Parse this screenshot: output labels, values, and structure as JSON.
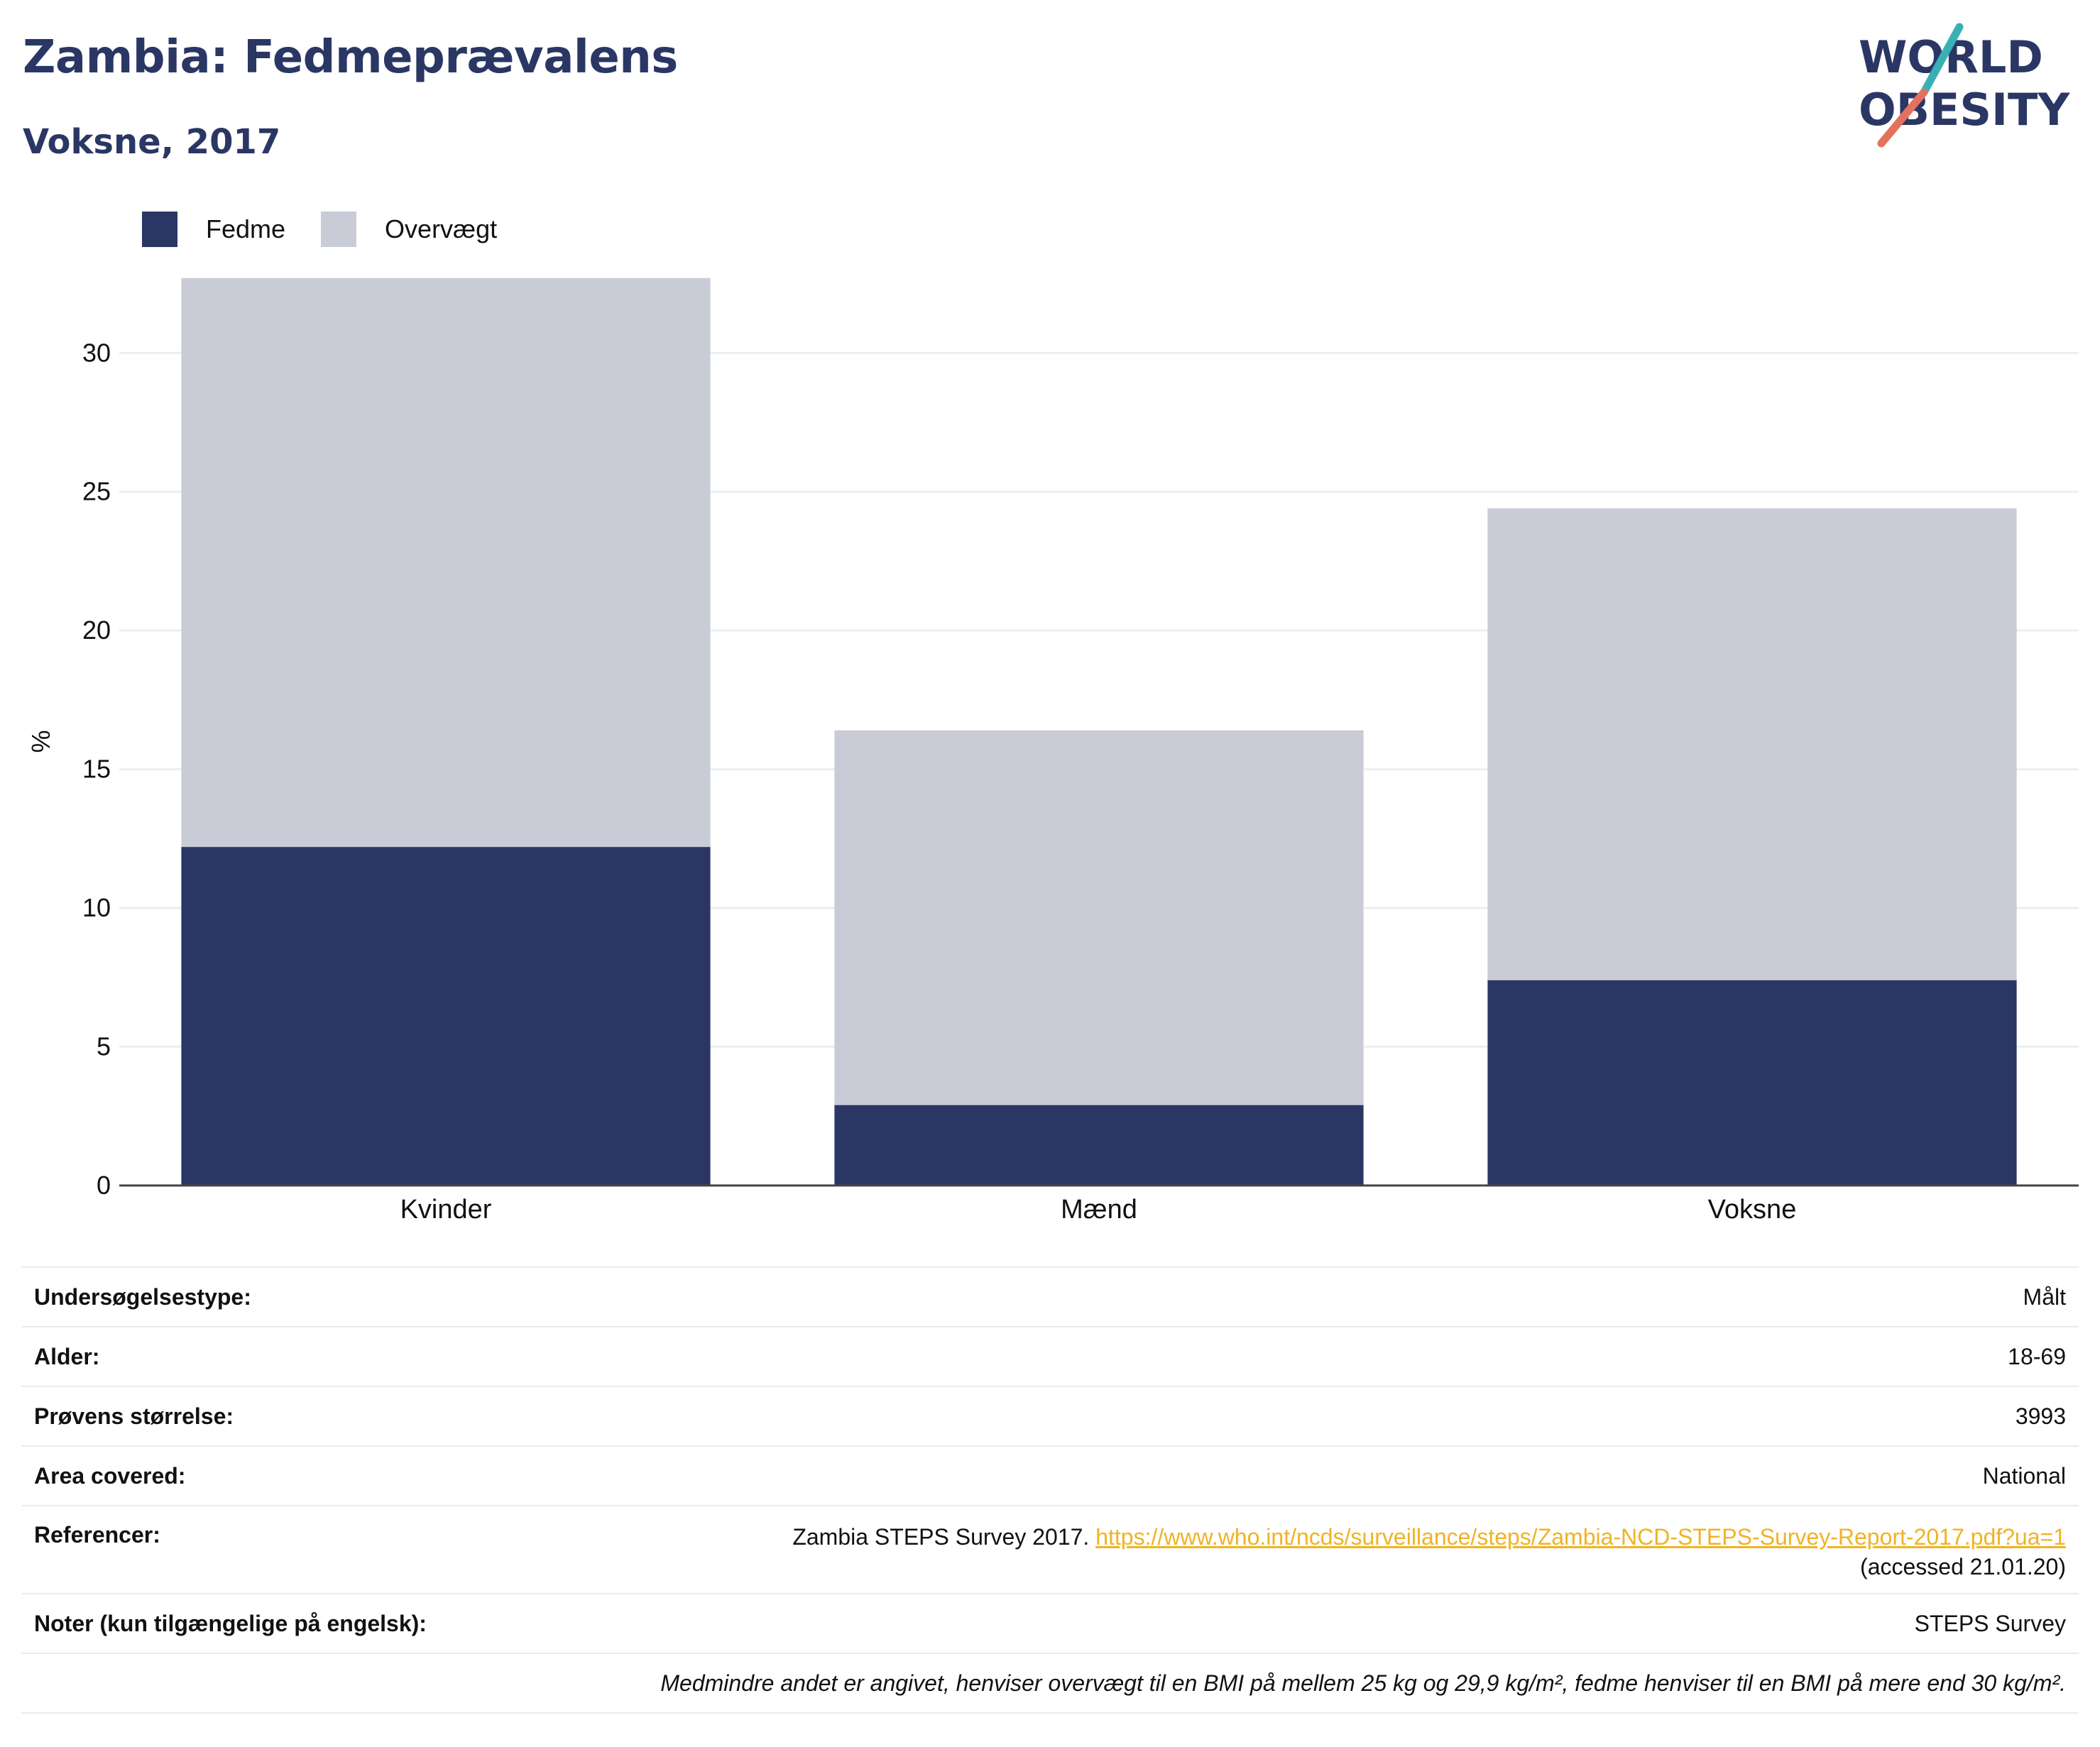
{
  "header": {
    "title": "Zambia: Fedmeprævalens",
    "subtitle": "Voksne, 2017"
  },
  "logo": {
    "line1": "WORLD",
    "line2": "OBESITY"
  },
  "colors": {
    "fedme": "#2a3764",
    "overvaegt": "#c9cbd6",
    "link": "#f0b323",
    "title": "#2a3764"
  },
  "legend": [
    {
      "label": "Fedme",
      "color": "#2a3764"
    },
    {
      "label": "Overvægt",
      "color": "#c9cbd6"
    }
  ],
  "chart_data": {
    "type": "bar",
    "stacked": true,
    "categories": [
      "Kvinder",
      "Mænd",
      "Voksne"
    ],
    "series": [
      {
        "name": "Fedme",
        "values": [
          12.2,
          2.9,
          7.4
        ]
      },
      {
        "name": "Overvægt",
        "values": [
          20.5,
          13.5,
          17.0
        ]
      }
    ],
    "ylabel": "%",
    "ylim": [
      0,
      33
    ],
    "yticks": [
      0,
      5,
      10,
      15,
      20,
      25,
      30
    ],
    "grid": true
  },
  "meta": {
    "survey_type_label": "Undersøgelsestype:",
    "survey_type_value": "Målt",
    "age_label": "Alder:",
    "age_value": "18-69",
    "sample_label": "Prøvens størrelse:",
    "sample_value": "3993",
    "area_label": "Area covered:",
    "area_value": "National",
    "ref_label": "Referencer:",
    "ref_text": "Zambia STEPS Survey 2017.",
    "ref_link": "https://www.who.int/ncds/surveillance/steps/Zambia-NCD-STEPS-Survey-Report-2017.pdf?ua=1",
    "ref_accessed": "(accessed 21.01.20)",
    "notes_label": "Noter (kun tilgængelige på engelsk):",
    "notes_value": "STEPS Survey",
    "footnote": "Medmindre andet er angivet, henviser overvægt til en BMI på mellem 25 kg og 29,9 kg/m², fedme henviser til en BMI på mere end 30 kg/m²."
  }
}
